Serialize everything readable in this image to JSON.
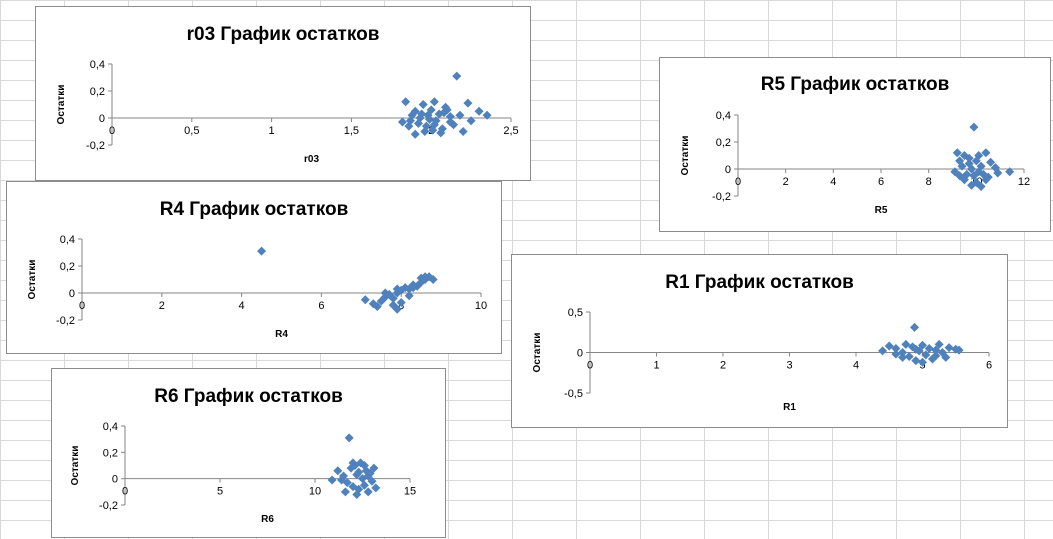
{
  "chart_data": [
    {
      "type": "scatter",
      "title": "r03 График остатков",
      "xlabel": "r03",
      "ylabel": "Остатки",
      "xlim": [
        0,
        2.5
      ],
      "ylim": [
        -0.2,
        0.4
      ],
      "xticks": [
        0,
        0.5,
        1,
        1.5,
        2,
        2.5
      ],
      "xtick_labels": [
        "0",
        "0,5",
        "1",
        "1,5",
        "2",
        "2,5"
      ],
      "yticks": [
        -0.2,
        0,
        0.2,
        0.4
      ],
      "ytick_labels": [
        "-0,2",
        "0",
        "0,2",
        "0,4"
      ],
      "grid": false,
      "marker_color": "#4F81BD",
      "points": [
        [
          2.16,
          0.31
        ],
        [
          2.23,
          0.11
        ],
        [
          1.84,
          0.12
        ],
        [
          1.95,
          0.1
        ],
        [
          2.02,
          0.12
        ],
        [
          2.09,
          0.08
        ],
        [
          2.3,
          0.05
        ],
        [
          1.9,
          0.05
        ],
        [
          2.0,
          0.06
        ],
        [
          1.88,
          0.02
        ],
        [
          1.93,
          0.0
        ],
        [
          1.98,
          0.02
        ],
        [
          2.05,
          0.03
        ],
        [
          2.12,
          0.01
        ],
        [
          2.18,
          0.02
        ],
        [
          2.25,
          -0.02
        ],
        [
          1.82,
          -0.03
        ],
        [
          1.86,
          -0.06
        ],
        [
          1.92,
          -0.04
        ],
        [
          1.97,
          -0.06
        ],
        [
          2.02,
          -0.05
        ],
        [
          2.07,
          -0.08
        ],
        [
          2.12,
          -0.03
        ],
        [
          1.96,
          -0.1
        ],
        [
          2.01,
          -0.09
        ],
        [
          2.06,
          -0.11
        ],
        [
          2.2,
          -0.1
        ],
        [
          1.9,
          -0.12
        ],
        [
          1.94,
          0.03
        ],
        [
          2.03,
          -0.02
        ],
        [
          2.08,
          0.04
        ],
        [
          2.14,
          -0.05
        ],
        [
          1.99,
          -0.01
        ],
        [
          1.87,
          -0.02
        ],
        [
          2.35,
          0.02
        ],
        [
          2.1,
          0.06
        ]
      ]
    },
    {
      "type": "scatter",
      "title": "R5 График остатков",
      "xlabel": "R5",
      "ylabel": "Остатки",
      "xlim": [
        0,
        12
      ],
      "ylim": [
        -0.2,
        0.4
      ],
      "xticks": [
        0,
        2,
        4,
        6,
        8,
        10,
        12
      ],
      "xtick_labels": [
        "0",
        "2",
        "4",
        "6",
        "8",
        "10",
        "12"
      ],
      "yticks": [
        -0.2,
        0,
        0.2,
        0.4
      ],
      "ytick_labels": [
        "-0,2",
        "0",
        "0,2",
        "0,4"
      ],
      "grid": false,
      "marker_color": "#4F81BD",
      "points": [
        [
          9.9,
          0.31
        ],
        [
          9.2,
          0.12
        ],
        [
          9.5,
          0.1
        ],
        [
          10.1,
          0.1
        ],
        [
          10.4,
          0.12
        ],
        [
          9.3,
          0.06
        ],
        [
          9.7,
          0.04
        ],
        [
          10.0,
          0.06
        ],
        [
          10.6,
          0.05
        ],
        [
          9.4,
          0.02
        ],
        [
          9.8,
          0.0
        ],
        [
          10.2,
          0.02
        ],
        [
          10.8,
          0.01
        ],
        [
          11.4,
          -0.02
        ],
        [
          9.1,
          -0.02
        ],
        [
          9.6,
          -0.04
        ],
        [
          9.9,
          -0.05
        ],
        [
          10.3,
          -0.04
        ],
        [
          10.9,
          -0.03
        ],
        [
          9.5,
          -0.08
        ],
        [
          10.0,
          -0.1
        ],
        [
          10.4,
          -0.08
        ],
        [
          9.8,
          -0.12
        ],
        [
          10.2,
          -0.13
        ],
        [
          9.7,
          0.08
        ],
        [
          10.5,
          -0.06
        ],
        [
          9.3,
          -0.05
        ],
        [
          10.1,
          -0.02
        ]
      ]
    },
    {
      "type": "scatter",
      "title": "R4 График остатков",
      "xlabel": "R4",
      "ylabel": "Остатки",
      "xlim": [
        0,
        10
      ],
      "ylim": [
        -0.2,
        0.4
      ],
      "xticks": [
        0,
        2,
        4,
        6,
        8,
        10
      ],
      "xtick_labels": [
        "0",
        "2",
        "4",
        "6",
        "8",
        "10"
      ],
      "yticks": [
        -0.2,
        0,
        0.2,
        0.4
      ],
      "ytick_labels": [
        "-0,2",
        "0",
        "0,2",
        "0,4"
      ],
      "grid": false,
      "marker_color": "#4F81BD",
      "points": [
        [
          4.5,
          0.31
        ],
        [
          7.1,
          -0.05
        ],
        [
          7.3,
          -0.08
        ],
        [
          7.5,
          -0.06
        ],
        [
          7.6,
          -0.03
        ],
        [
          7.7,
          -0.01
        ],
        [
          7.8,
          -0.04
        ],
        [
          7.9,
          0.0
        ],
        [
          7.9,
          -0.12
        ],
        [
          8.0,
          0.02
        ],
        [
          8.1,
          0.04
        ],
        [
          8.2,
          0.03
        ],
        [
          8.3,
          0.06
        ],
        [
          8.4,
          0.05
        ],
        [
          8.5,
          0.08
        ],
        [
          8.6,
          0.1
        ],
        [
          8.7,
          0.12
        ],
        [
          8.8,
          0.1
        ],
        [
          8.6,
          0.12
        ],
        [
          8.5,
          0.11
        ],
        [
          7.8,
          -0.09
        ],
        [
          8.0,
          -0.07
        ],
        [
          7.4,
          -0.1
        ],
        [
          8.2,
          -0.02
        ],
        [
          7.6,
          0.0
        ],
        [
          8.3,
          0.04
        ],
        [
          7.9,
          0.03
        ]
      ]
    },
    {
      "type": "scatter",
      "title": "R1 График остатков",
      "xlabel": "R1",
      "ylabel": "Остатки",
      "xlim": [
        0,
        6
      ],
      "ylim": [
        -0.5,
        0.5
      ],
      "xticks": [
        0,
        1,
        2,
        3,
        4,
        5,
        6
      ],
      "xtick_labels": [
        "0",
        "1",
        "2",
        "3",
        "4",
        "5",
        "6"
      ],
      "yticks": [
        -0.5,
        0,
        0.5
      ],
      "ytick_labels": [
        "-0,5",
        "0",
        "0,5"
      ],
      "grid": false,
      "marker_color": "#4F81BD",
      "points": [
        [
          4.88,
          0.31
        ],
        [
          4.4,
          0.02
        ],
        [
          4.5,
          0.08
        ],
        [
          4.6,
          0.05
        ],
        [
          4.7,
          0.0
        ],
        [
          4.75,
          0.1
        ],
        [
          4.8,
          -0.05
        ],
        [
          4.85,
          0.07
        ],
        [
          4.9,
          -0.1
        ],
        [
          4.95,
          0.02
        ],
        [
          5.0,
          0.09
        ],
        [
          5.05,
          -0.03
        ],
        [
          5.1,
          0.05
        ],
        [
          5.15,
          -0.08
        ],
        [
          5.2,
          0.03
        ],
        [
          5.25,
          0.1
        ],
        [
          5.3,
          0.0
        ],
        [
          5.4,
          0.06
        ],
        [
          5.5,
          0.04
        ],
        [
          5.55,
          0.03
        ],
        [
          4.7,
          -0.06
        ],
        [
          4.9,
          0.04
        ],
        [
          5.0,
          -0.12
        ],
        [
          5.2,
          -0.04
        ],
        [
          4.6,
          -0.02
        ],
        [
          5.35,
          -0.06
        ]
      ]
    },
    {
      "type": "scatter",
      "title": "R6 График остатков",
      "xlabel": "R6",
      "ylabel": "Остатки",
      "xlim": [
        0,
        15
      ],
      "ylim": [
        -0.2,
        0.4
      ],
      "xticks": [
        0,
        5,
        10,
        15
      ],
      "xtick_labels": [
        "0",
        "5",
        "10",
        "15"
      ],
      "yticks": [
        -0.2,
        0,
        0.2,
        0.4
      ],
      "ytick_labels": [
        "-0,2",
        "0",
        "0,2",
        "0,4"
      ],
      "grid": false,
      "marker_color": "#4F81BD",
      "points": [
        [
          11.8,
          0.31
        ],
        [
          10.9,
          -0.01
        ],
        [
          11.2,
          0.06
        ],
        [
          11.5,
          0.02
        ],
        [
          11.7,
          -0.03
        ],
        [
          11.9,
          0.08
        ],
        [
          12.0,
          -0.06
        ],
        [
          12.1,
          0.1
        ],
        [
          12.2,
          0.03
        ],
        [
          12.3,
          -0.08
        ],
        [
          12.4,
          0.12
        ],
        [
          12.5,
          0.0
        ],
        [
          12.6,
          -0.05
        ],
        [
          12.7,
          0.06
        ],
        [
          12.8,
          -0.1
        ],
        [
          12.9,
          0.04
        ],
        [
          13.0,
          -0.02
        ],
        [
          13.1,
          0.08
        ],
        [
          13.2,
          -0.07
        ],
        [
          12.0,
          0.12
        ],
        [
          12.3,
          0.05
        ],
        [
          12.6,
          0.1
        ],
        [
          11.6,
          -0.1
        ],
        [
          12.8,
          0.02
        ],
        [
          11.4,
          -0.01
        ],
        [
          12.2,
          -0.12
        ]
      ]
    }
  ]
}
